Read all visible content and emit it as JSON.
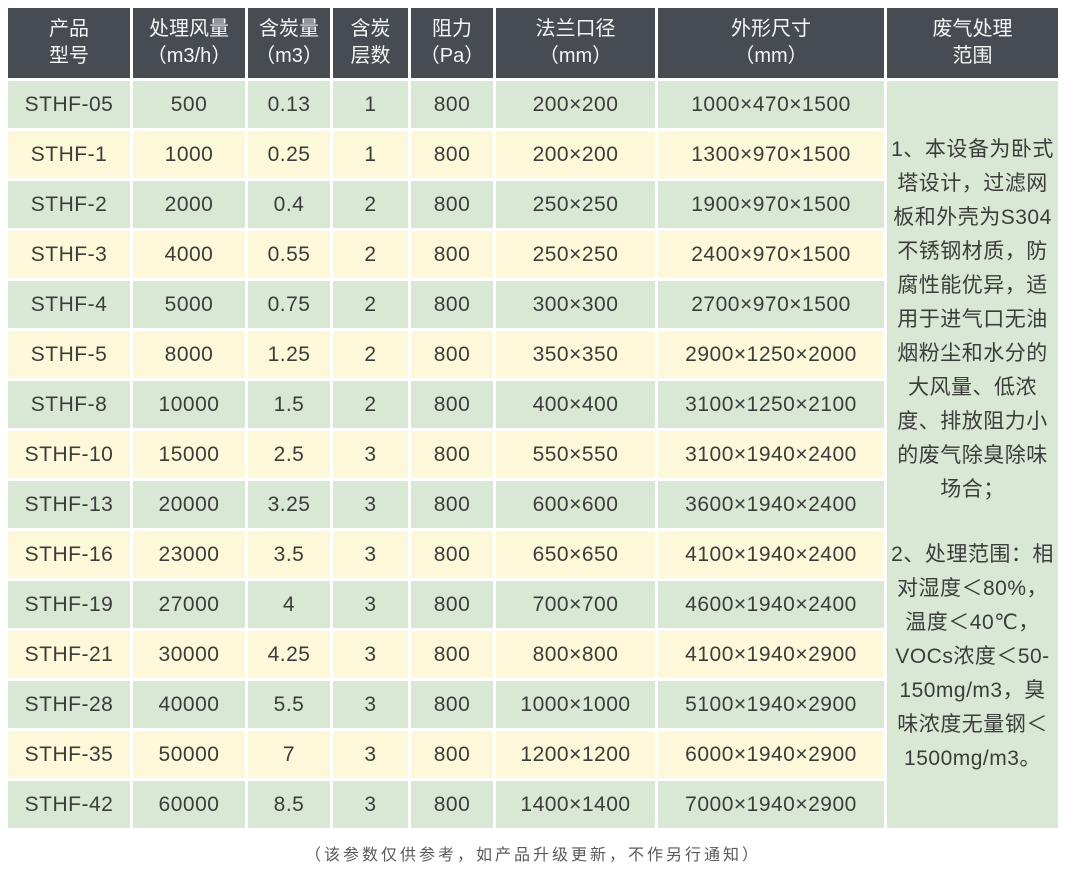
{
  "table": {
    "headers": [
      {
        "lines": [
          "产品",
          "型号"
        ]
      },
      {
        "lines": [
          "处理风量",
          "（m3/h）"
        ]
      },
      {
        "lines": [
          "含炭量",
          "（m3）"
        ]
      },
      {
        "lines": [
          "含炭",
          "层数"
        ]
      },
      {
        "lines": [
          "阻力",
          "（Pa）"
        ]
      },
      {
        "lines": [
          "法兰口径",
          "（mm）"
        ]
      },
      {
        "lines": [
          "外形尺寸",
          "（mm）"
        ]
      },
      {
        "lines": [
          "废气处理",
          "范围"
        ]
      }
    ],
    "rows": [
      [
        "STHF-05",
        "500",
        "0.13",
        "1",
        "800",
        "200×200",
        "1000×470×1500"
      ],
      [
        "STHF-1",
        "1000",
        "0.25",
        "1",
        "800",
        "200×200",
        "1300×970×1500"
      ],
      [
        "STHF-2",
        "2000",
        "0.4",
        "2",
        "800",
        "250×250",
        "1900×970×1500"
      ],
      [
        "STHF-3",
        "4000",
        "0.55",
        "2",
        "800",
        "250×250",
        "2400×970×1500"
      ],
      [
        "STHF-4",
        "5000",
        "0.75",
        "2",
        "800",
        "300×300",
        "2700×970×1500"
      ],
      [
        "STHF-5",
        "8000",
        "1.25",
        "2",
        "800",
        "350×350",
        "2900×1250×2000"
      ],
      [
        "STHF-8",
        "10000",
        "1.5",
        "2",
        "800",
        "400×400",
        "3100×1250×2100"
      ],
      [
        "STHF-10",
        "15000",
        "2.5",
        "3",
        "800",
        "550×550",
        "3100×1940×2400"
      ],
      [
        "STHF-13",
        "20000",
        "3.25",
        "3",
        "800",
        "600×600",
        "3600×1940×2400"
      ],
      [
        "STHF-16",
        "23000",
        "3.5",
        "3",
        "800",
        "650×650",
        "4100×1940×2400"
      ],
      [
        "STHF-19",
        "27000",
        "4",
        "3",
        "800",
        "700×700",
        "4600×1940×2400"
      ],
      [
        "STHF-21",
        "30000",
        "4.25",
        "3",
        "800",
        "800×800",
        "4100×1940×2900"
      ],
      [
        "STHF-28",
        "40000",
        "5.5",
        "3",
        "800",
        "1000×1000",
        "5100×1940×2900"
      ],
      [
        "STHF-35",
        "50000",
        "7",
        "3",
        "800",
        "1200×1200",
        "6000×1940×2900"
      ],
      [
        "STHF-42",
        "60000",
        "8.5",
        "3",
        "800",
        "1400×1400",
        "7000×1940×2900"
      ]
    ],
    "notes": {
      "para1": "1、本设备为卧式塔设计，过滤网板和外壳为S304不锈钢材质，防腐性能优异，适用于进气口无油烟粉尘和水分的大风量、低浓度、排放阻力小的废气除臭除味场合；",
      "para2": "2、处理范围：相对湿度＜80%，温度＜40℃，VOCs浓度＜50-150mg/m3，臭味浓度无量钢＜1500mg/m3。"
    },
    "footer": "（该参数仅供参考，如产品升级更新，不作另行通知）"
  },
  "colors": {
    "header_bg": "#474c52",
    "row_green": "#d9e8d5",
    "row_yellow": "#fcf8d9",
    "cell_text": "#3b3d3b",
    "header_text": "#f4f5f5",
    "footer_text": "#5a5a5a",
    "page_bg": "#ffffff"
  }
}
